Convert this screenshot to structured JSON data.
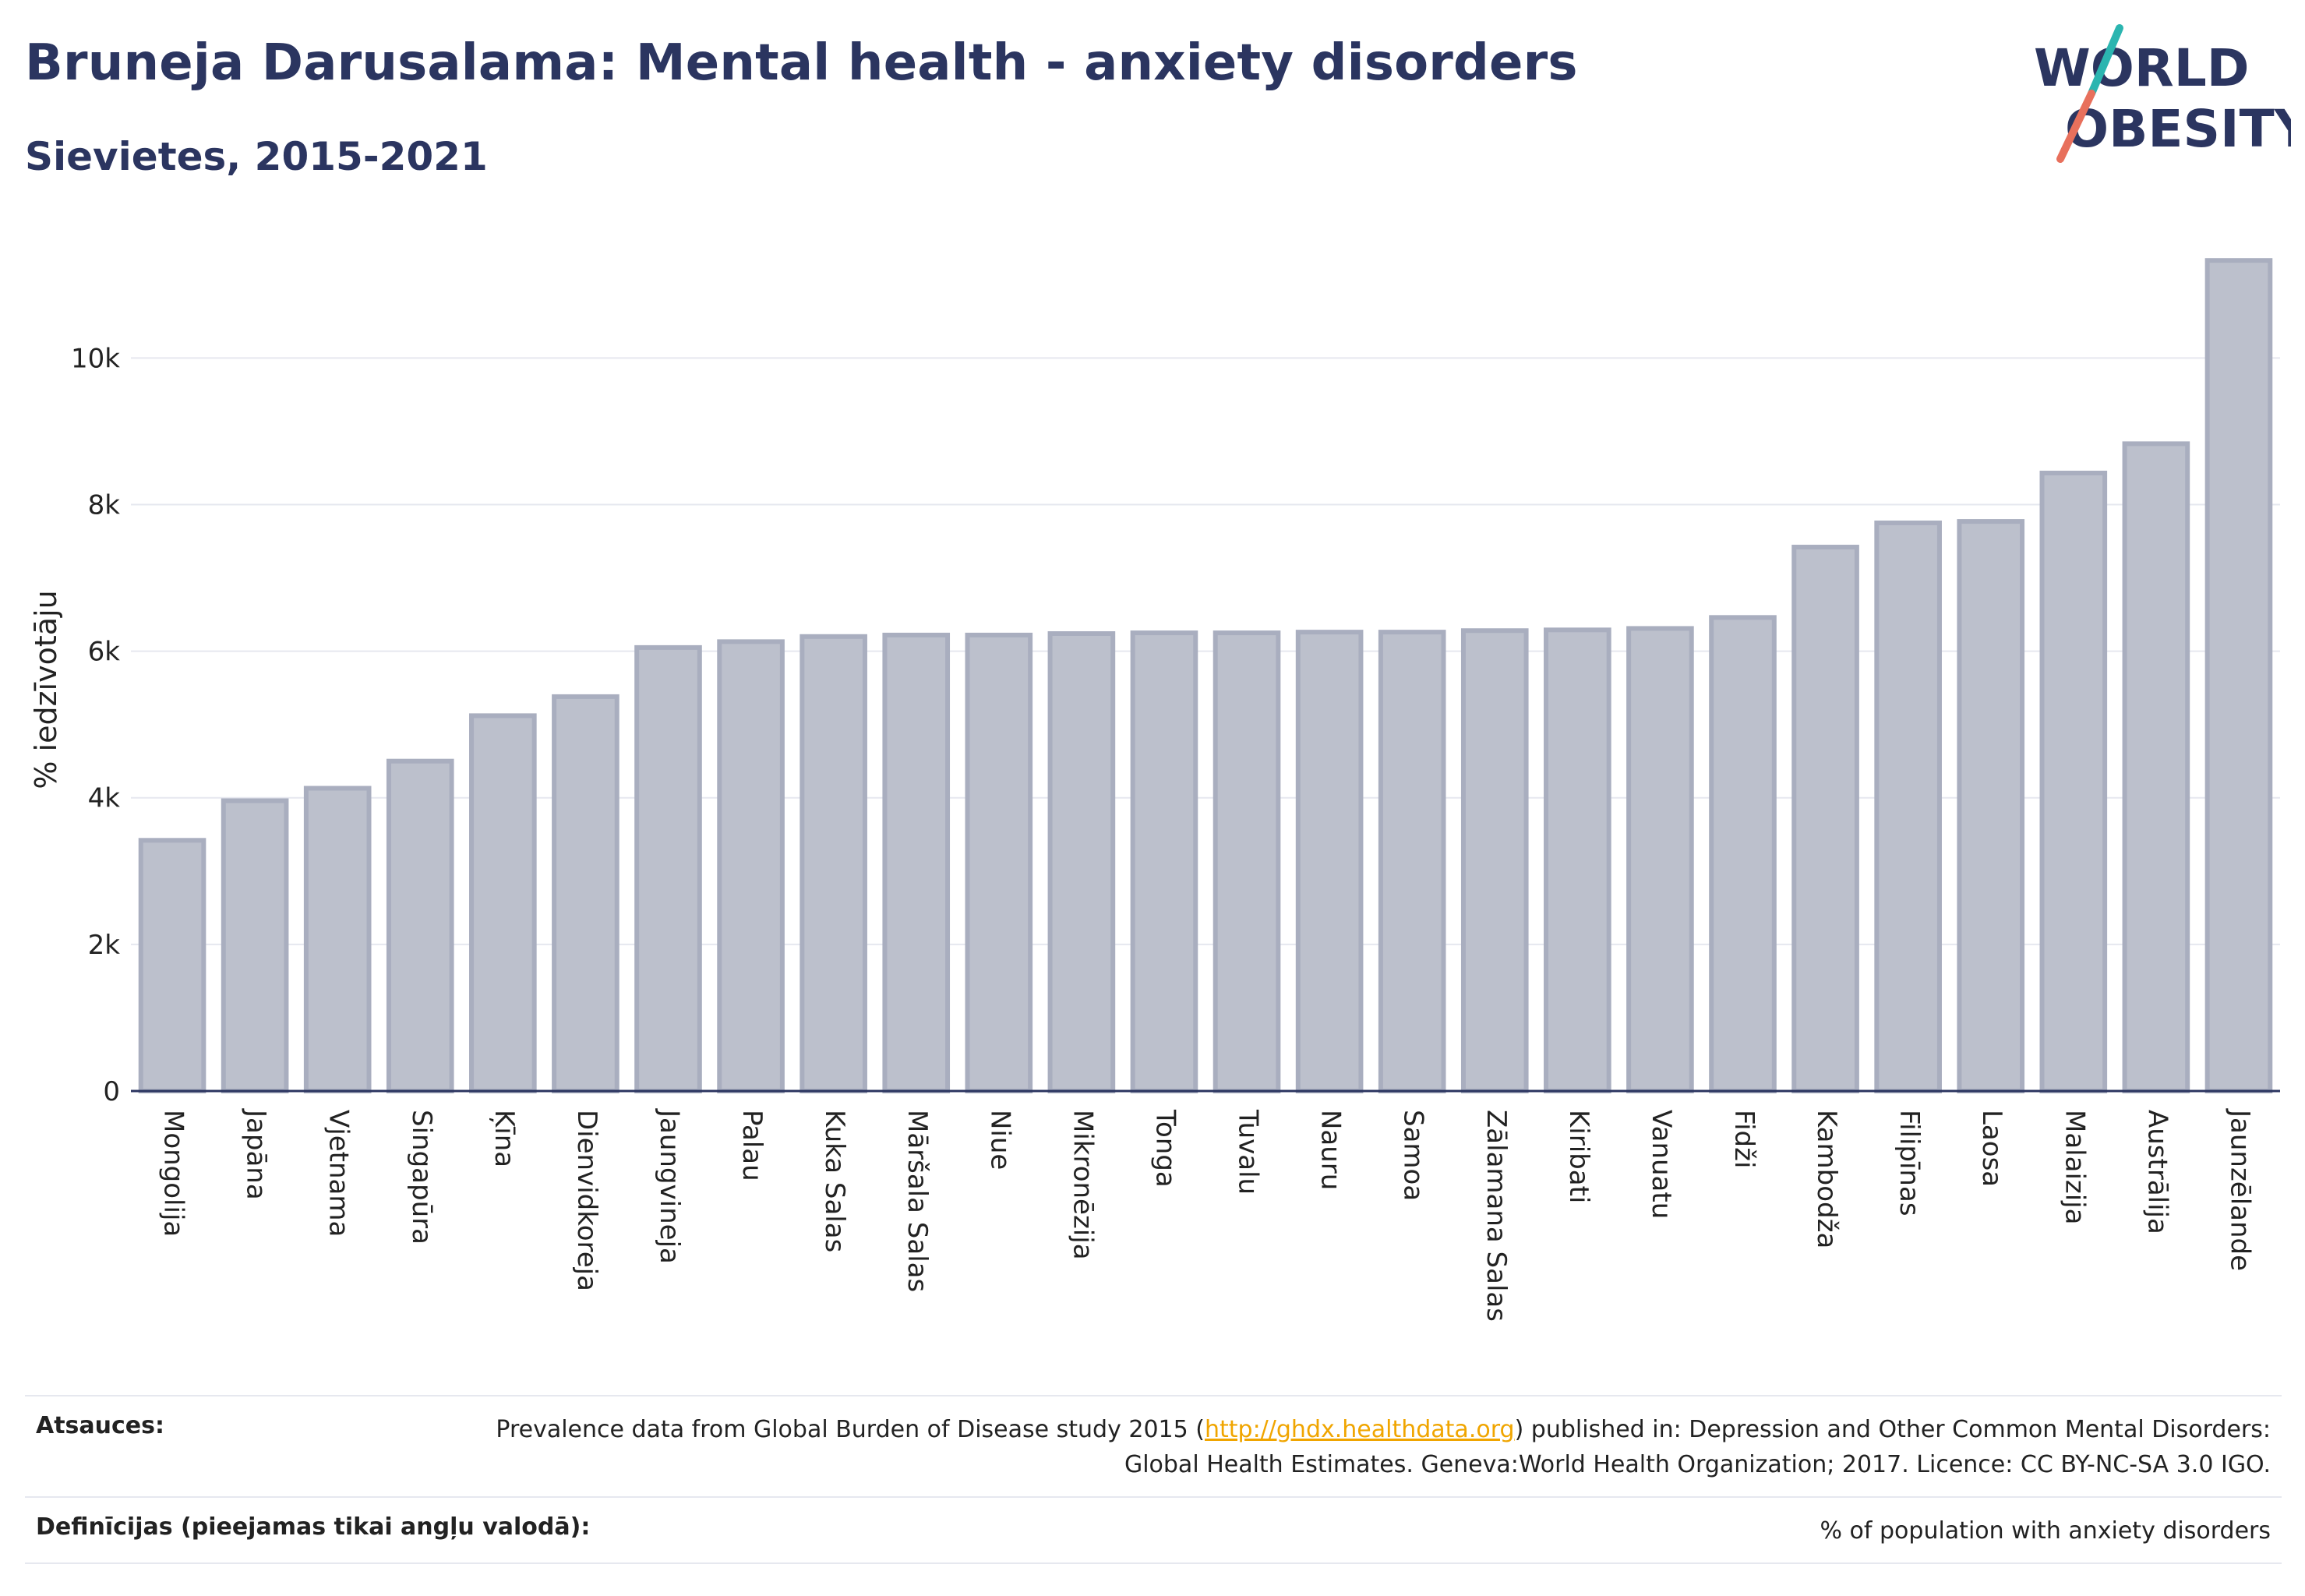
{
  "header": {
    "title": "Bruneja Darusalama: Mental health - anxiety disorders",
    "subtitle": "Sievietes, 2015-2021"
  },
  "logo": {
    "line1": "WORLD",
    "line2": "OBESITY"
  },
  "chart_data": {
    "type": "bar",
    "ylabel": "% iedzīvotāju",
    "ylim": [
      0,
      11800
    ],
    "yticks": [
      0,
      2000,
      4000,
      6000,
      8000,
      10000
    ],
    "ytick_labels": [
      "0",
      "2k",
      "4k",
      "6k",
      "8k",
      "10k"
    ],
    "grid": true,
    "bar_fill": "#bcc0cc",
    "bar_stroke": "#a9aebf",
    "categories": [
      "Mongolija",
      "Japāna",
      "Vjetnama",
      "Singapūra",
      "Ķīna",
      "Dienvidkoreja",
      "Jaungvineja",
      "Palau",
      "Kuka Salas",
      "Māršala Salas",
      "Niue",
      "Mikronēzija",
      "Tonga",
      "Tuvalu",
      "Nauru",
      "Samoa",
      "Zālamana Salas",
      "Kiribati",
      "Vanuatu",
      "Fidži",
      "Kambodža",
      "Filipīnas",
      "Laosa",
      "Malaizija",
      "Austrālija",
      "Jaunzēlande"
    ],
    "values": [
      3420,
      3960,
      4130,
      4500,
      5120,
      5380,
      6050,
      6130,
      6200,
      6220,
      6220,
      6240,
      6250,
      6250,
      6260,
      6260,
      6280,
      6290,
      6310,
      6460,
      7420,
      7750,
      7770,
      8430,
      8830,
      11330
    ]
  },
  "footer": {
    "sources_label": "Atsauces:",
    "sources_pre": "Prevalence data from Global Burden of Disease study 2015 (",
    "sources_link": "http://ghdx.healthdata.org",
    "sources_post": ") published in: Depression and Other Common Mental Disorders: Global Health Estimates. Geneva:World Health Organization; 2017. Licence: CC BY-NC-SA 3.0 IGO.",
    "definitions_label": "Definīcijas (pieejamas tikai angļu valodā):",
    "definitions_value": "% of population with anxiety disorders"
  }
}
